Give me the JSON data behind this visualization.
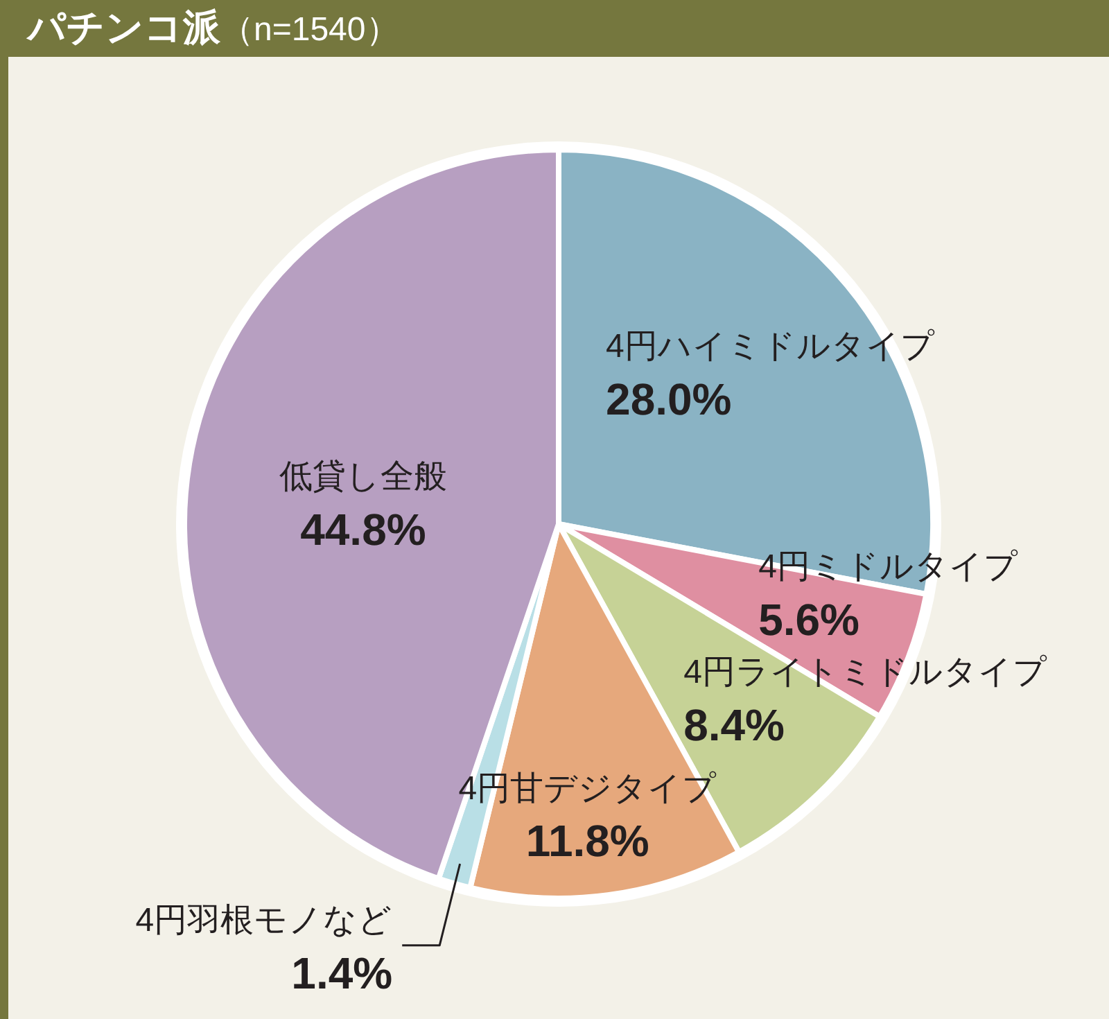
{
  "chart_data": {
    "type": "pie",
    "title": "パチンコ派",
    "subtitle": "（n=1540）",
    "categories": [
      "4円ハイミドルタイプ",
      "4円ミドルタイプ",
      "4円ライトミドルタイプ",
      "4円甘デジタイプ",
      "4円羽根モノなど",
      "低貸し全般"
    ],
    "values": [
      28.0,
      5.6,
      8.4,
      11.8,
      1.4,
      44.8
    ],
    "colors": [
      "#8ab3c4",
      "#df8fa1",
      "#c6d296",
      "#e6a87c",
      "#b9dfe6",
      "#b79fc1"
    ],
    "value_labels": [
      "28.0%",
      "5.6%",
      "8.4%",
      "11.8%",
      "1.4%",
      "44.8%"
    ],
    "legend": false
  }
}
